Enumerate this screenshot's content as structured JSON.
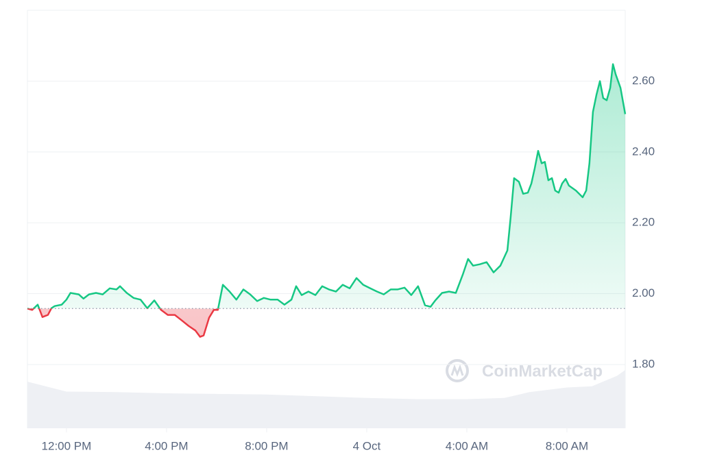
{
  "chart_data": {
    "type": "line",
    "x": [
      -1.56,
      -1.37,
      -1.15,
      -0.96,
      -0.74,
      -0.6,
      -0.47,
      -0.19,
      0,
      0.16,
      0.49,
      0.68,
      0.9,
      1.18,
      1.45,
      1.73,
      2.0,
      2.14,
      2.41,
      2.68,
      2.96,
      3.23,
      3.51,
      3.78,
      4.05,
      4.33,
      4.6,
      4.88,
      5.15,
      5.34,
      5.48,
      5.7,
      5.89,
      6.05,
      6.25,
      6.52,
      6.79,
      7.07,
      7.34,
      7.62,
      7.89,
      8.16,
      8.44,
      8.71,
      8.99,
      9.18,
      9.4,
      9.67,
      9.95,
      10.22,
      10.49,
      10.77,
      11.04,
      11.32,
      11.59,
      11.86,
      12.14,
      12.41,
      12.68,
      12.96,
      13.23,
      13.51,
      13.78,
      14.05,
      14.33,
      14.55,
      14.74,
      15.01,
      15.29,
      15.56,
      15.84,
      16.05,
      16.25,
      16.52,
      16.79,
      17.07,
      17.34,
      17.62,
      17.75,
      17.89,
      18.08,
      18.25,
      18.44,
      18.58,
      18.71,
      18.85,
      18.99,
      19.12,
      19.26,
      19.4,
      19.53,
      19.67,
      19.81,
      19.95,
      20.08,
      20.36,
      20.63,
      20.77,
      20.9,
      21.04,
      21.18,
      21.32,
      21.45,
      21.59,
      21.73,
      21.84,
      21.95,
      22.14,
      22.33
    ],
    "values": [
      1.958,
      1.954,
      1.969,
      1.934,
      1.94,
      1.959,
      1.965,
      1.969,
      1.983,
      2.002,
      1.998,
      1.986,
      1.998,
      2.002,
      1.998,
      2.015,
      2.012,
      2.021,
      2.002,
      1.988,
      1.983,
      1.959,
      1.981,
      1.954,
      1.94,
      1.94,
      1.925,
      1.909,
      1.896,
      1.878,
      1.882,
      1.932,
      1.954,
      1.954,
      2.025,
      2.006,
      1.983,
      2.012,
      1.998,
      1.979,
      1.988,
      1.983,
      1.983,
      1.969,
      1.983,
      2.021,
      1.996,
      2.006,
      1.996,
      2.021,
      2.012,
      2.006,
      2.025,
      2.015,
      2.044,
      2.025,
      2.015,
      2.006,
      1.998,
      2.012,
      2.012,
      2.017,
      1.996,
      2.021,
      1.967,
      1.963,
      1.981,
      2.002,
      2.006,
      2.002,
      2.054,
      2.098,
      2.079,
      2.083,
      2.089,
      2.06,
      2.079,
      2.122,
      2.214,
      2.326,
      2.316,
      2.282,
      2.285,
      2.311,
      2.353,
      2.403,
      2.368,
      2.372,
      2.32,
      2.326,
      2.291,
      2.285,
      2.311,
      2.324,
      2.305,
      2.291,
      2.272,
      2.291,
      2.368,
      2.513,
      2.561,
      2.6,
      2.552,
      2.546,
      2.581,
      2.648,
      2.619,
      2.581,
      2.507
    ],
    "baseline": 1.958,
    "up_color": "#16c784",
    "down_color": "#ea3943",
    "xlim": [
      -1.56,
      22.33
    ],
    "xticks": [
      {
        "value": 0,
        "label": "12:00 PM"
      },
      {
        "value": 4,
        "label": "4:00 PM"
      },
      {
        "value": 8,
        "label": "8:00 PM"
      },
      {
        "value": 12,
        "label": "4 Oct"
      },
      {
        "value": 16,
        "label": "4:00 AM"
      },
      {
        "value": 20,
        "label": "8:00 AM"
      }
    ],
    "ylim": [
      1.62,
      2.8
    ],
    "yticks": [
      {
        "value": 1.8,
        "label": "1.80"
      },
      {
        "value": 2.0,
        "label": "2.00"
      },
      {
        "value": 2.2,
        "label": "2.20"
      },
      {
        "value": 2.4,
        "label": "2.40"
      },
      {
        "value": 2.6,
        "label": "2.60"
      }
    ],
    "grid": true,
    "volume": {
      "x": [
        -1.56,
        0,
        2,
        4,
        6,
        8,
        10,
        12,
        14,
        16,
        17.5,
        18.5,
        20,
        21,
        22,
        22.33
      ],
      "values": [
        80,
        63,
        62,
        60,
        59,
        58,
        55,
        52,
        50,
        50,
        52,
        62,
        70,
        72,
        90,
        100
      ],
      "ylim": [
        0,
        100
      ],
      "color": "#eef0f4"
    },
    "watermark": "CoinMarketCap"
  }
}
